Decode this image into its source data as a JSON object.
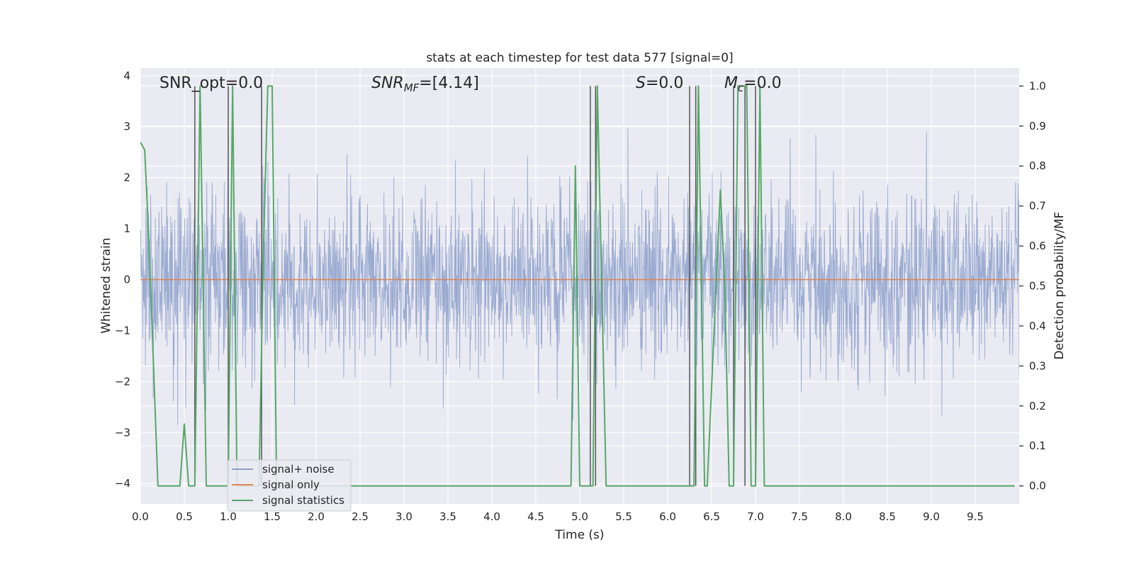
{
  "chart_data": {
    "type": "line",
    "title": "stats at each timestep for test data 577 [signal=0]",
    "xlabel": "Time (s)",
    "ylabel": "Whitened strain",
    "ylabel_right": "Detection probability/MF",
    "xlim": [
      0,
      10
    ],
    "ylim": [
      -4.4,
      4.15
    ],
    "ylim_right": [
      -0.045,
      1.045
    ],
    "x_ticks": [
      0.0,
      0.5,
      1.0,
      1.5,
      2.0,
      2.5,
      3.0,
      3.5,
      4.0,
      4.5,
      5.0,
      5.5,
      6.0,
      6.5,
      7.0,
      7.5,
      8.0,
      8.5,
      9.0,
      9.5
    ],
    "x_tick_labels": [
      "0.0",
      "0.5",
      "1.0",
      "1.5",
      "2.0",
      "2.5",
      "3.0",
      "3.5",
      "4.0",
      "4.5",
      "5.0",
      "5.5",
      "6.0",
      "6.5",
      "7.0",
      "7.5",
      "8.0",
      "8.5",
      "9.0",
      "9.5"
    ],
    "y_ticks": [
      -4,
      -3,
      -2,
      -1,
      0,
      1,
      2,
      3,
      4
    ],
    "y_tick_labels": [
      "−4",
      "−3",
      "−2",
      "−1",
      "0",
      "1",
      "2",
      "3",
      "4"
    ],
    "y_right_ticks": [
      0.0,
      0.1,
      0.2,
      0.3,
      0.4,
      0.5,
      0.6,
      0.7,
      0.8,
      0.9,
      1.0
    ],
    "y_right_tick_labels": [
      "0.0",
      "0.1",
      "0.2",
      "0.3",
      "0.4",
      "0.5",
      "0.6",
      "0.7",
      "0.8",
      "0.9",
      "1.0"
    ],
    "grid": true,
    "legend_position": "lower-left",
    "annotations": [
      {
        "text": "SNR_opt=0.0",
        "x": 0.19
      },
      {
        "text": "SNR_MF=[4.14]",
        "x": 2.6,
        "math": true
      },
      {
        "text": "S=0.0",
        "x": 5.6,
        "math": true
      },
      {
        "text": "M_c=0.0",
        "x": 6.6,
        "math": true
      }
    ],
    "series": [
      {
        "name": "signal+ noise",
        "color": "#8da0cb",
        "axis": "left",
        "kind": "noise",
        "typical_envelope": [
          -1.7,
          1.6
        ],
        "peak_range": [
          -4.0,
          3.6
        ]
      },
      {
        "name": "signal only",
        "color": "#dd8452",
        "axis": "left",
        "x": [
          0,
          10
        ],
        "values": [
          0,
          0
        ]
      },
      {
        "name": "signal statistics",
        "color": "#55a868",
        "axis": "right",
        "x": [
          0.0,
          0.05,
          0.1,
          0.2,
          0.45,
          0.5,
          0.55,
          0.62,
          0.68,
          0.75,
          1.0,
          1.05,
          1.1,
          1.35,
          1.4,
          1.45,
          1.5,
          1.55,
          4.9,
          4.95,
          5.0,
          5.05,
          5.1,
          5.15,
          5.2,
          5.3,
          6.25,
          6.3,
          6.35,
          6.42,
          6.45,
          6.6,
          6.65,
          6.7,
          6.75,
          6.8,
          6.9,
          6.95,
          7.0,
          7.05,
          7.1,
          9.95
        ],
        "values": [
          0.86,
          0.84,
          0.6,
          0.0,
          0.0,
          0.155,
          0.0,
          0.0,
          1.0,
          0.0,
          0.0,
          1.0,
          0.0,
          0.0,
          0.58,
          1.0,
          1.0,
          0.0,
          0.0,
          0.8,
          0.0,
          0.0,
          0.0,
          0.0,
          1.0,
          0.0,
          0.0,
          0.0,
          1.0,
          0.0,
          0.0,
          0.74,
          0.5,
          0.0,
          0.0,
          1.0,
          1.0,
          0.0,
          0.0,
          1.0,
          0.0,
          0.0
        ]
      }
    ],
    "vertical_markers": {
      "color": "#555555",
      "x": [
        0.62,
        1.0,
        1.38,
        5.12,
        5.18,
        6.25,
        6.32,
        6.75,
        6.88,
        7.0
      ]
    }
  }
}
